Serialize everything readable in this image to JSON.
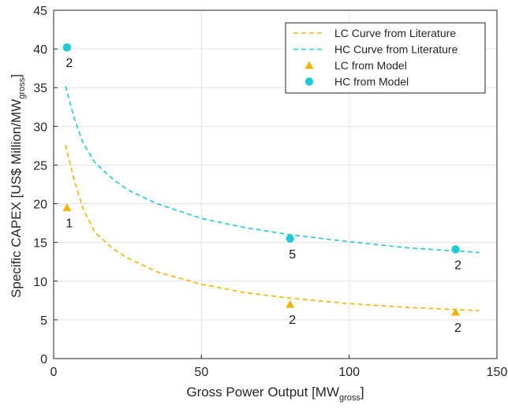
{
  "chart_data": {
    "type": "line",
    "xlabel": "Gross Power Output [MW",
    "xlabel_sub": "gross",
    "xlabel_end": "]",
    "ylabel": "Specific CAPEX [US$ Million/MW",
    "ylabel_sub": "gross",
    "ylabel_end": "]",
    "xlim": [
      0,
      150
    ],
    "ylim": [
      0,
      45
    ],
    "xticks": [
      0,
      50,
      100,
      150
    ],
    "yticks": [
      0,
      5,
      10,
      15,
      20,
      25,
      30,
      35,
      40,
      45
    ],
    "grid": true,
    "legend_position": "top-right",
    "series": [
      {
        "name": "LC Curve from Literature",
        "kind": "dashed-line",
        "color": "#F5B400",
        "x": [
          4,
          7,
          10,
          14,
          20,
          25,
          35,
          50,
          65,
          80,
          100,
          120,
          144
        ],
        "y": [
          27.6,
          23.0,
          19.3,
          16.3,
          14.2,
          13.0,
          11.2,
          9.6,
          8.5,
          7.8,
          7.1,
          6.6,
          6.2
        ]
      },
      {
        "name": "HC Curve from Literature",
        "kind": "dashed-line",
        "color": "#22C9D6",
        "x": [
          4,
          7,
          10,
          14,
          20,
          25,
          35,
          50,
          65,
          80,
          100,
          120,
          144
        ],
        "y": [
          35.2,
          31.0,
          27.8,
          25.3,
          23.2,
          21.8,
          20.0,
          18.1,
          16.9,
          16.0,
          15.1,
          14.3,
          13.7
        ]
      },
      {
        "name": "LC from Model",
        "kind": "triangle-marker",
        "color": "#F5B400",
        "x": [
          4.5,
          80,
          136
        ],
        "y": [
          19.5,
          7.0,
          6.0
        ],
        "labels": [
          "1",
          "2",
          "2"
        ]
      },
      {
        "name": "HC from Model",
        "kind": "circle-marker",
        "color": "#22C9D6",
        "x": [
          4.5,
          80,
          136
        ],
        "y": [
          40.2,
          15.5,
          14.1
        ],
        "labels": [
          "2",
          "5",
          "2"
        ]
      }
    ]
  }
}
